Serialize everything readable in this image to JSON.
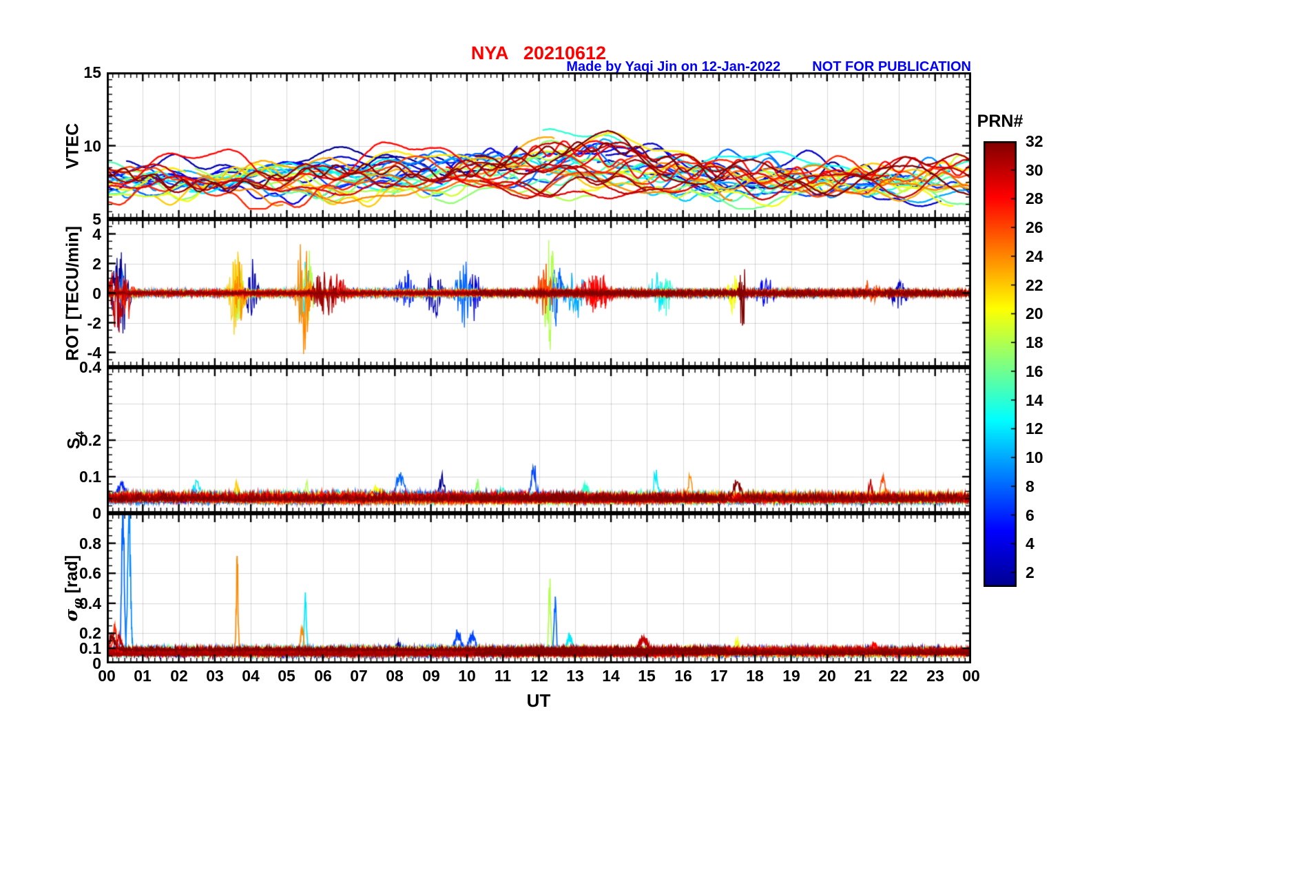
{
  "header": {
    "title": "NYA   20210612",
    "credit": "Made by Yaqi Jin on 12-Jan-2022",
    "warning": "NOT FOR PUBLICATION",
    "title_color": "#ff0000",
    "credit_color": "#0000ff"
  },
  "chart_data": {
    "type": "line",
    "station": "NYA",
    "date": "20210612",
    "seed": 20210612,
    "x": {
      "label": "UT",
      "range": [
        0,
        24
      ],
      "tick_labels": [
        "00",
        "01",
        "02",
        "03",
        "04",
        "05",
        "06",
        "07",
        "08",
        "09",
        "10",
        "11",
        "12",
        "13",
        "14",
        "15",
        "16",
        "17",
        "18",
        "19",
        "20",
        "21",
        "22",
        "23",
        "00"
      ],
      "minor_step_minutes": 10,
      "grid": true
    },
    "colorbar": {
      "label": "PRN#",
      "range": [
        1,
        32
      ],
      "ticks": [
        2,
        4,
        6,
        8,
        10,
        12,
        14,
        16,
        18,
        20,
        22,
        24,
        26,
        28,
        30,
        32
      ],
      "colormap": "jet",
      "stops": [
        [
          0,
          "#00008f"
        ],
        [
          0.125,
          "#0000ff"
        ],
        [
          0.375,
          "#00ffff"
        ],
        [
          0.5,
          "#80ff80"
        ],
        [
          0.625,
          "#ffff00"
        ],
        [
          0.875,
          "#ff0000"
        ],
        [
          1,
          "#800000"
        ]
      ]
    },
    "panels": [
      {
        "id": "vtec",
        "ylabel": "VTEC",
        "ylim": [
          5,
          15
        ],
        "yticks": [
          {
            "v": 15,
            "label": "15"
          },
          {
            "v": 10,
            "label": "10"
          }
        ],
        "grid": [
          10
        ],
        "minor": 0.5,
        "description": "Vertical TEC per PRN, quiet level 6-9 TECU, daytime enhancement up to ~12 TECU between 08 and 17 UT"
      },
      {
        "id": "rot",
        "ylabel": "ROT [TECU/min]",
        "ylim": [
          -5,
          5
        ],
        "yticks": [
          {
            "v": 5,
            "label": "5"
          },
          {
            "v": 4,
            "label": "4"
          },
          {
            "v": 2,
            "label": "2"
          },
          {
            "v": 0,
            "label": "0"
          },
          {
            "v": -2,
            "label": "-2"
          },
          {
            "v": -4,
            "label": "-4"
          }
        ],
        "grid": [
          -4,
          -2,
          0,
          2,
          4
        ],
        "minor": 0.5,
        "baseline_amplitude": 0.25,
        "description": "Rate of TEC, noise band around 0 with bursts to +/-4.5 TECU/min"
      },
      {
        "id": "s4",
        "label_main": "S",
        "label_sub": "4",
        "ylim": [
          0,
          0.4
        ],
        "yticks": [
          {
            "v": 0.4,
            "label": "0.4"
          },
          {
            "v": 0.2,
            "label": "0.2"
          },
          {
            "v": 0.1,
            "label": "0.1"
          },
          {
            "v": 0,
            "label": "0"
          }
        ],
        "grid": [
          0.1,
          0.2,
          0.3
        ],
        "minor": 0.02,
        "baseline": 0.04,
        "description": "Amplitude scintillation index, baseline ~0.04 with peaks to ~0.15"
      },
      {
        "id": "sigma_phi",
        "label_main": "σ",
        "label_sub": "φ",
        "label_suffix": "[rad]",
        "ylim": [
          0,
          1
        ],
        "yticks": [
          {
            "v": 0.8,
            "label": "0.8"
          },
          {
            "v": 0.6,
            "label": "0.6"
          },
          {
            "v": 0.4,
            "label": "0.4"
          },
          {
            "v": 0.2,
            "label": "0.2"
          },
          {
            "v": 0.1,
            "label": "0.1"
          },
          {
            "v": 0,
            "label": "0"
          }
        ],
        "grid": [
          0.1,
          0.2,
          0.4,
          0.6,
          0.8
        ],
        "minor": 0.05,
        "baseline": 0.08,
        "description": "Phase scintillation index, baseline ~0.08 rad with isolated spikes to 0.8+ rad"
      }
    ],
    "events": {
      "rot": [
        {
          "prn": 1,
          "t": 0.4,
          "w": 0.18,
          "a": 3.0
        },
        {
          "prn": 30,
          "t": 0.3,
          "w": 0.14,
          "a": 2.8
        },
        {
          "prn": 27,
          "t": 0.55,
          "w": 0.1,
          "a": 2.2
        },
        {
          "prn": 8,
          "t": 0.45,
          "w": 0.06,
          "a": 2.0
        },
        {
          "prn": 2,
          "t": 4.05,
          "w": 0.12,
          "a": 2.4
        },
        {
          "prn": 22,
          "t": 3.6,
          "w": 0.15,
          "a": 3.4
        },
        {
          "prn": 24,
          "t": 3.7,
          "w": 0.1,
          "a": 2.4
        },
        {
          "prn": 18,
          "t": 3.65,
          "w": 0.08,
          "a": 3.4
        },
        {
          "prn": 24,
          "t": 5.45,
          "w": 0.12,
          "a": 4.3
        },
        {
          "prn": 18,
          "t": 5.6,
          "w": 0.08,
          "a": 3.9
        },
        {
          "prn": 12,
          "t": 5.5,
          "w": 0.1,
          "a": 2.6
        },
        {
          "prn": 31,
          "t": 6.05,
          "w": 0.25,
          "a": 1.7
        },
        {
          "prn": 29,
          "t": 6.35,
          "w": 0.2,
          "a": 1.4
        },
        {
          "prn": 6,
          "t": 8.3,
          "w": 0.2,
          "a": 1.5
        },
        {
          "prn": 2,
          "t": 9.1,
          "w": 0.15,
          "a": 2.0
        },
        {
          "prn": 8,
          "t": 9.9,
          "w": 0.15,
          "a": 2.4
        },
        {
          "prn": 4,
          "t": 10.2,
          "w": 0.1,
          "a": 2.1
        },
        {
          "prn": 26,
          "t": 12.15,
          "w": 0.15,
          "a": 2.4
        },
        {
          "prn": 18,
          "t": 12.3,
          "w": 0.1,
          "a": 4.7
        },
        {
          "prn": 8,
          "t": 12.45,
          "w": 0.12,
          "a": 3.2
        },
        {
          "prn": 10,
          "t": 13.0,
          "w": 0.2,
          "a": 1.8
        },
        {
          "prn": 28,
          "t": 13.6,
          "w": 0.3,
          "a": 1.4
        },
        {
          "prn": 12,
          "t": 15.3,
          "w": 0.15,
          "a": 1.7
        },
        {
          "prn": 14,
          "t": 15.55,
          "w": 0.1,
          "a": 1.4
        },
        {
          "prn": 20,
          "t": 17.4,
          "w": 0.1,
          "a": 1.5
        },
        {
          "prn": 32,
          "t": 17.65,
          "w": 0.06,
          "a": 3.1
        },
        {
          "prn": 5,
          "t": 18.3,
          "w": 0.2,
          "a": 1.0
        },
        {
          "prn": 26,
          "t": 21.2,
          "w": 0.15,
          "a": 1.1
        },
        {
          "prn": 3,
          "t": 22.0,
          "w": 0.2,
          "a": 0.9
        }
      ],
      "s4": [
        {
          "prn": 6,
          "t": 0.4,
          "w": 0.1,
          "a": 0.05
        },
        {
          "prn": 12,
          "t": 2.5,
          "w": 0.08,
          "a": 0.05
        },
        {
          "prn": 22,
          "t": 3.6,
          "w": 0.05,
          "a": 0.05
        },
        {
          "prn": 18,
          "t": 5.55,
          "w": 0.05,
          "a": 0.06
        },
        {
          "prn": 20,
          "t": 7.5,
          "w": 0.1,
          "a": 0.04
        },
        {
          "prn": 8,
          "t": 8.15,
          "w": 0.1,
          "a": 0.07
        },
        {
          "prn": 1,
          "t": 9.3,
          "w": 0.08,
          "a": 0.07
        },
        {
          "prn": 17,
          "t": 10.3,
          "w": 0.05,
          "a": 0.06
        },
        {
          "prn": 14,
          "t": 11.0,
          "w": 0.1,
          "a": 0.04
        },
        {
          "prn": 7,
          "t": 11.85,
          "w": 0.06,
          "a": 0.1
        },
        {
          "prn": 14,
          "t": 13.3,
          "w": 0.08,
          "a": 0.05
        },
        {
          "prn": 12,
          "t": 15.25,
          "w": 0.06,
          "a": 0.08
        },
        {
          "prn": 24,
          "t": 16.2,
          "w": 0.05,
          "a": 0.06
        },
        {
          "prn": 32,
          "t": 17.5,
          "w": 0.1,
          "a": 0.05
        },
        {
          "prn": 30,
          "t": 21.2,
          "w": 0.05,
          "a": 0.06
        },
        {
          "prn": 26,
          "t": 21.55,
          "w": 0.06,
          "a": 0.07
        }
      ],
      "sigma": [
        {
          "prn": 27,
          "t": 0.22,
          "w": 0.05,
          "a": 0.18
        },
        {
          "prn": 32,
          "t": 0.15,
          "w": 0.08,
          "a": 0.1
        },
        {
          "prn": 8,
          "t": 0.45,
          "w": 0.035,
          "a": 1.1
        },
        {
          "prn": 9,
          "t": 0.62,
          "w": 0.04,
          "a": 1.1
        },
        {
          "prn": 30,
          "t": 0.35,
          "w": 0.06,
          "a": 0.12
        },
        {
          "prn": 24,
          "t": 3.62,
          "w": 0.025,
          "a": 0.74
        },
        {
          "prn": 12,
          "t": 5.52,
          "w": 0.03,
          "a": 0.4
        },
        {
          "prn": 24,
          "t": 5.42,
          "w": 0.04,
          "a": 0.2
        },
        {
          "prn": 1,
          "t": 8.1,
          "w": 0.1,
          "a": 0.08
        },
        {
          "prn": 7,
          "t": 9.75,
          "w": 0.09,
          "a": 0.16
        },
        {
          "prn": 7,
          "t": 10.15,
          "w": 0.09,
          "a": 0.14
        },
        {
          "prn": 18,
          "t": 12.3,
          "w": 0.03,
          "a": 0.53
        },
        {
          "prn": 8,
          "t": 12.45,
          "w": 0.03,
          "a": 0.4
        },
        {
          "prn": 12,
          "t": 12.85,
          "w": 0.08,
          "a": 0.12
        },
        {
          "prn": 30,
          "t": 14.9,
          "w": 0.1,
          "a": 0.1
        },
        {
          "prn": 20,
          "t": 17.5,
          "w": 0.04,
          "a": 0.14
        },
        {
          "prn": 28,
          "t": 21.3,
          "w": 0.08,
          "a": 0.08
        }
      ]
    }
  }
}
